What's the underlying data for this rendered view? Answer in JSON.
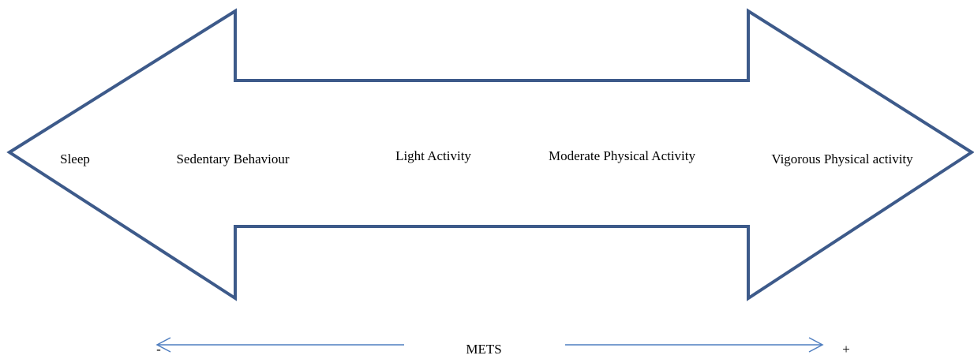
{
  "categories": [
    "Sleep",
    "Sedentary Behaviour",
    "Light Activity",
    "Moderate Physical Activity",
    "Vigorous Physical activity"
  ],
  "scale": {
    "label": "METS",
    "low": "-",
    "high": "+"
  }
}
